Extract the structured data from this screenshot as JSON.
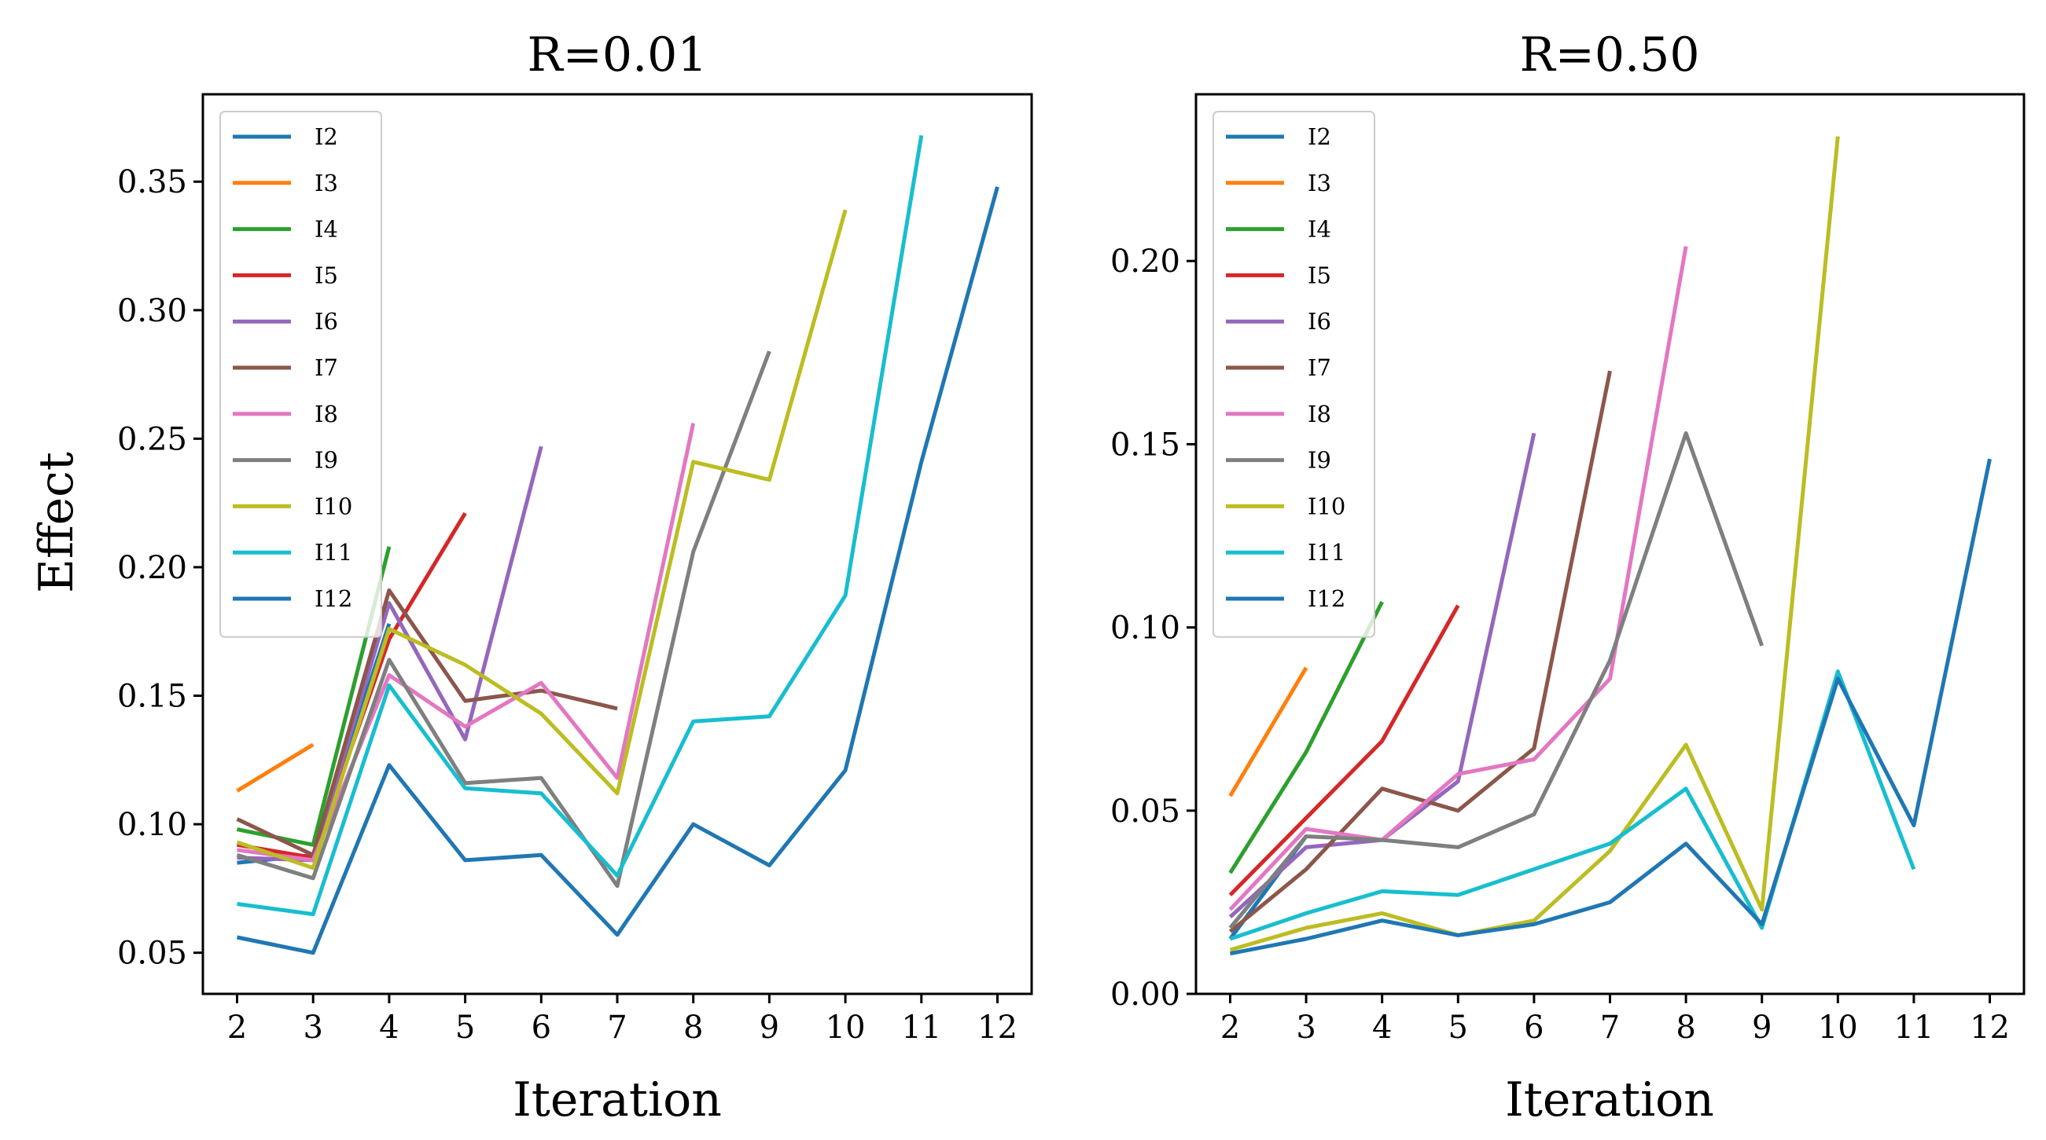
{
  "chart_data": [
    {
      "type": "line",
      "title": "R=0.01",
      "xlabel": "Iteration",
      "ylabel": "Effect",
      "xlim": [
        1.55,
        12.45
      ],
      "ylim": [
        0.034,
        0.384
      ],
      "xticks": [
        2,
        3,
        4,
        5,
        6,
        7,
        8,
        9,
        10,
        11,
        12
      ],
      "xtick_labels": [
        "2",
        "3",
        "4",
        "5",
        "6",
        "7",
        "8",
        "9",
        "10",
        "11",
        "12"
      ],
      "yticks": [
        0.05,
        0.1,
        0.15,
        0.2,
        0.25,
        0.3,
        0.35
      ],
      "ytick_labels": [
        "0.05",
        "0.10",
        "0.15",
        "0.20",
        "0.25",
        "0.30",
        "0.35"
      ],
      "grid": false,
      "legend_position": "top-left",
      "series": [
        {
          "name": "I2",
          "color": "#1f77b4",
          "x": [
            2,
            3,
            4
          ],
          "values": [
            0.085,
            0.088,
            0.178
          ]
        },
        {
          "name": "I3",
          "color": "#ff7f0e",
          "x": [
            2,
            3
          ],
          "values": [
            0.113,
            0.131
          ]
        },
        {
          "name": "I4",
          "color": "#2ca02c",
          "x": [
            2,
            3,
            4
          ],
          "values": [
            0.098,
            0.092,
            0.208
          ]
        },
        {
          "name": "I5",
          "color": "#d62728",
          "x": [
            2,
            3,
            4,
            5
          ],
          "values": [
            0.092,
            0.087,
            0.172,
            0.221
          ]
        },
        {
          "name": "I6",
          "color": "#9467bd",
          "x": [
            2,
            3,
            4,
            5,
            6
          ],
          "values": [
            0.087,
            0.086,
            0.186,
            0.133,
            0.247
          ]
        },
        {
          "name": "I7",
          "color": "#8c564b",
          "x": [
            2,
            3,
            4,
            5,
            6,
            7
          ],
          "values": [
            0.102,
            0.088,
            0.191,
            0.148,
            0.152,
            0.145
          ]
        },
        {
          "name": "I8",
          "color": "#e377c2",
          "x": [
            2,
            3,
            4,
            5,
            6,
            7,
            8
          ],
          "values": [
            0.09,
            0.086,
            0.158,
            0.138,
            0.155,
            0.118,
            0.256
          ]
        },
        {
          "name": "I9",
          "color": "#7f7f7f",
          "x": [
            2,
            3,
            4,
            5,
            6,
            7,
            8,
            9
          ],
          "values": [
            0.088,
            0.079,
            0.164,
            0.116,
            0.118,
            0.076,
            0.206,
            0.284
          ]
        },
        {
          "name": "I10",
          "color": "#bcbd22",
          "x": [
            2,
            3,
            4,
            5,
            6,
            7,
            8,
            9,
            10
          ],
          "values": [
            0.093,
            0.083,
            0.176,
            0.162,
            0.143,
            0.112,
            0.241,
            0.234,
            0.339
          ]
        },
        {
          "name": "I11",
          "color": "#17becf",
          "x": [
            2,
            3,
            4,
            5,
            6,
            7,
            8,
            9,
            10,
            11
          ],
          "values": [
            0.069,
            0.065,
            0.154,
            0.114,
            0.112,
            0.08,
            0.14,
            0.142,
            0.189,
            0.368
          ]
        },
        {
          "name": "I12",
          "color": "#1f77b4",
          "x": [
            2,
            3,
            4,
            5,
            6,
            7,
            8,
            9,
            10,
            11,
            12
          ],
          "values": [
            0.056,
            0.05,
            0.123,
            0.086,
            0.088,
            0.057,
            0.1,
            0.084,
            0.121,
            0.241,
            0.348
          ]
        }
      ]
    },
    {
      "type": "line",
      "title": "R=0.50",
      "xlabel": "Iteration",
      "ylabel": "",
      "xlim": [
        1.55,
        12.45
      ],
      "ylim": [
        0.0,
        0.2455
      ],
      "xticks": [
        2,
        3,
        4,
        5,
        6,
        7,
        8,
        9,
        10,
        11,
        12
      ],
      "xtick_labels": [
        "2",
        "3",
        "4",
        "5",
        "6",
        "7",
        "8",
        "9",
        "10",
        "11",
        "12"
      ],
      "yticks": [
        0.0,
        0.05,
        0.1,
        0.15,
        0.2
      ],
      "ytick_labels": [
        "0.00",
        "0.05",
        "0.10",
        "0.15",
        "0.20"
      ],
      "grid": false,
      "legend_position": "top-left",
      "series": [
        {
          "name": "I2",
          "color": "#1f77b4",
          "x": [
            2,
            3
          ],
          "values": [
            0.015,
            0.043
          ]
        },
        {
          "name": "I3",
          "color": "#ff7f0e",
          "x": [
            2,
            3
          ],
          "values": [
            0.054,
            0.089
          ]
        },
        {
          "name": "I4",
          "color": "#2ca02c",
          "x": [
            2,
            3,
            4
          ],
          "values": [
            0.033,
            0.066,
            0.107
          ]
        },
        {
          "name": "I5",
          "color": "#d62728",
          "x": [
            2,
            3,
            4,
            5
          ],
          "values": [
            0.027,
            0.048,
            0.069,
            0.106
          ]
        },
        {
          "name": "I6",
          "color": "#9467bd",
          "x": [
            2,
            3,
            4,
            5,
            6
          ],
          "values": [
            0.021,
            0.04,
            0.042,
            0.058,
            0.153
          ]
        },
        {
          "name": "I7",
          "color": "#8c564b",
          "x": [
            2,
            3,
            4,
            5,
            6,
            7
          ],
          "values": [
            0.017,
            0.034,
            0.056,
            0.05,
            0.067,
            0.17
          ]
        },
        {
          "name": "I8",
          "color": "#e377c2",
          "x": [
            2,
            3,
            4,
            5,
            6,
            7,
            8
          ],
          "values": [
            0.023,
            0.045,
            0.042,
            0.06,
            0.064,
            0.086,
            0.204
          ]
        },
        {
          "name": "I9",
          "color": "#7f7f7f",
          "x": [
            2,
            3,
            4,
            5,
            6,
            7,
            8,
            9
          ],
          "values": [
            0.018,
            0.043,
            0.042,
            0.04,
            0.049,
            0.091,
            0.153,
            0.095
          ]
        },
        {
          "name": "I10",
          "color": "#bcbd22",
          "x": [
            2,
            3,
            4,
            5,
            6,
            7,
            8,
            9,
            10
          ],
          "values": [
            0.012,
            0.018,
            0.022,
            0.016,
            0.02,
            0.039,
            0.068,
            0.023,
            0.234
          ]
        },
        {
          "name": "I11",
          "color": "#17becf",
          "x": [
            2,
            3,
            4,
            5,
            6,
            7,
            8,
            9,
            10,
            11
          ],
          "values": [
            0.015,
            0.022,
            0.028,
            0.027,
            0.034,
            0.041,
            0.056,
            0.018,
            0.088,
            0.034
          ]
        },
        {
          "name": "I12",
          "color": "#1f77b4",
          "x": [
            2,
            3,
            4,
            5,
            6,
            7,
            8,
            9,
            10,
            11,
            12
          ],
          "values": [
            0.011,
            0.015,
            0.02,
            0.016,
            0.019,
            0.025,
            0.041,
            0.019,
            0.086,
            0.046,
            0.146
          ]
        }
      ]
    }
  ]
}
